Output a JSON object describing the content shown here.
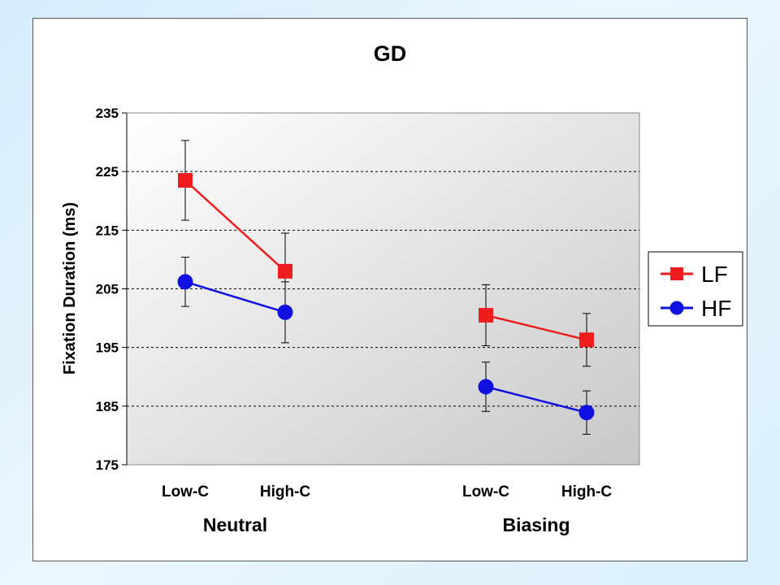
{
  "chart_data": {
    "type": "line",
    "title": "GD",
    "ylabel": "Fixation Duration (ms)",
    "xlabel": "",
    "ylim": [
      175,
      235
    ],
    "yticks": [
      175,
      185,
      195,
      205,
      215,
      225,
      235
    ],
    "grid": true,
    "legend_position": "right",
    "groups": [
      {
        "label": "Neutral",
        "categories": [
          "Low-C",
          "High-C"
        ]
      },
      {
        "label": "Biasing",
        "categories": [
          "Low-C",
          "High-C"
        ]
      }
    ],
    "series": [
      {
        "name": "LF",
        "color": "#ee1c1c",
        "marker": "square",
        "values": [
          [
            223.5,
            208
          ],
          [
            200.5,
            196.3
          ]
        ],
        "error": [
          [
            6.8,
            6.5
          ],
          [
            5.2,
            4.5
          ]
        ]
      },
      {
        "name": "HF",
        "color": "#1010e0",
        "marker": "circle",
        "values": [
          [
            206.2,
            201
          ],
          [
            188.3,
            183.9
          ]
        ],
        "error": [
          [
            4.2,
            5.2
          ],
          [
            4.2,
            3.7
          ]
        ]
      }
    ]
  }
}
